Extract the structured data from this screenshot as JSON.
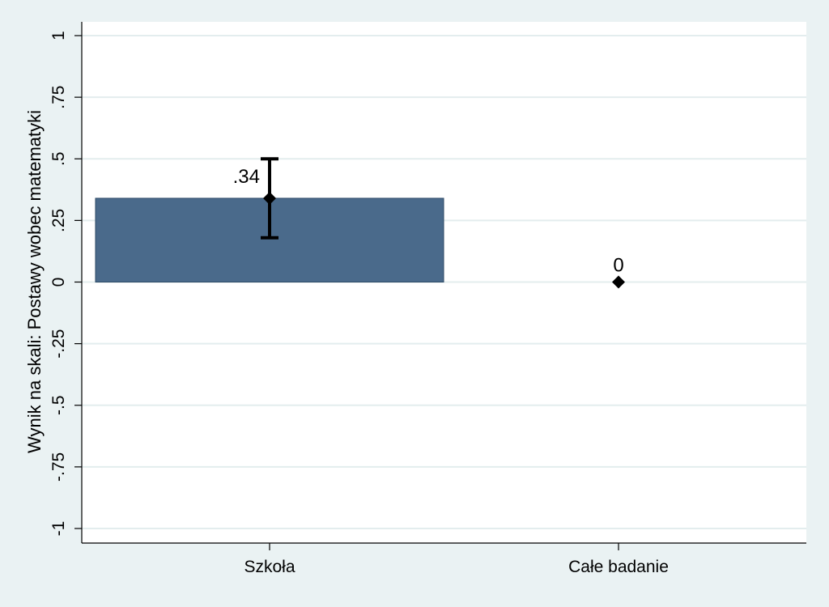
{
  "chart_data": {
    "type": "bar",
    "categories": [
      "Szkoła",
      "Całe badanie"
    ],
    "values": [
      0.34,
      0
    ],
    "value_labels": [
      ".34",
      "0"
    ],
    "has_bar": [
      true,
      false
    ],
    "error_bars": [
      {
        "low": 0.18,
        "high": 0.5
      },
      null
    ],
    "title": "",
    "xlabel": "",
    "ylabel": "Wynik na skali: Postawy wobec matematyki",
    "ylim": [
      -1,
      1
    ],
    "yticks": [
      {
        "value": 1,
        "label": "1"
      },
      {
        "value": 0.75,
        "label": ".75"
      },
      {
        "value": 0.5,
        "label": ".5"
      },
      {
        "value": 0.25,
        "label": ".25"
      },
      {
        "value": 0,
        "label": "0"
      },
      {
        "value": -0.25,
        "label": "-.25"
      },
      {
        "value": -0.5,
        "label": "-.5"
      },
      {
        "value": -0.75,
        "label": "-.75"
      },
      {
        "value": -1,
        "label": "-1"
      }
    ],
    "grid": true,
    "colors": {
      "background": "#eaf2f3",
      "plot": "#ffffff",
      "bar": "#4a6a8b",
      "gridline": "#e3edee",
      "marker": "#000000"
    }
  }
}
